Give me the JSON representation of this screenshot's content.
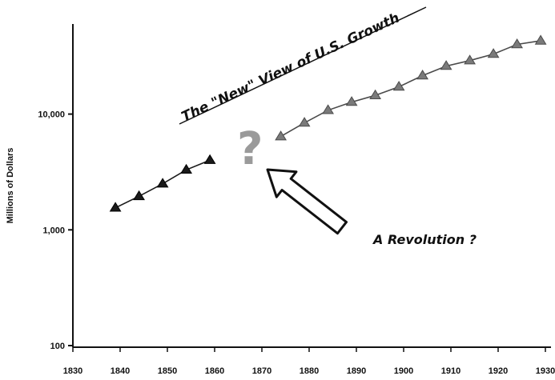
{
  "chart_data": {
    "type": "line",
    "title": "",
    "xlabel": "",
    "ylabel": "Millions of Dollars",
    "y_scale": "log",
    "xlim": [
      1830,
      1930
    ],
    "ylim": [
      100,
      60000
    ],
    "x_ticks": [
      "1830",
      "1840",
      "1850",
      "1860",
      "1870",
      "1880",
      "1890",
      "1900",
      "1910",
      "1920",
      "1930"
    ],
    "y_ticks": [
      {
        "value": 100,
        "label": "100"
      },
      {
        "value": 1000,
        "label": "1,000"
      },
      {
        "value": 10000,
        "label": "10,000"
      }
    ],
    "series": [
      {
        "marker": "triangle",
        "color": "#1a1a1a",
        "x": [
          1839,
          1844,
          1849,
          1854,
          1859
        ],
        "y": [
          1550,
          1950,
          2500,
          3300,
          4000
        ]
      },
      {
        "marker": "triangle",
        "color": "#7a7a7a",
        "x": [
          1874,
          1879,
          1884,
          1889,
          1894,
          1899,
          1904,
          1909,
          1914,
          1919,
          1924,
          1929
        ],
        "y": [
          6400,
          8400,
          10800,
          12700,
          14500,
          17200,
          21500,
          26000,
          29000,
          33000,
          40000,
          43000
        ]
      }
    ],
    "annotations": {
      "title": "The \"New\" View of U.S. Growth",
      "question_mark": "?",
      "revolution": "A Revolution ?"
    },
    "grid": false,
    "legend": "none"
  }
}
